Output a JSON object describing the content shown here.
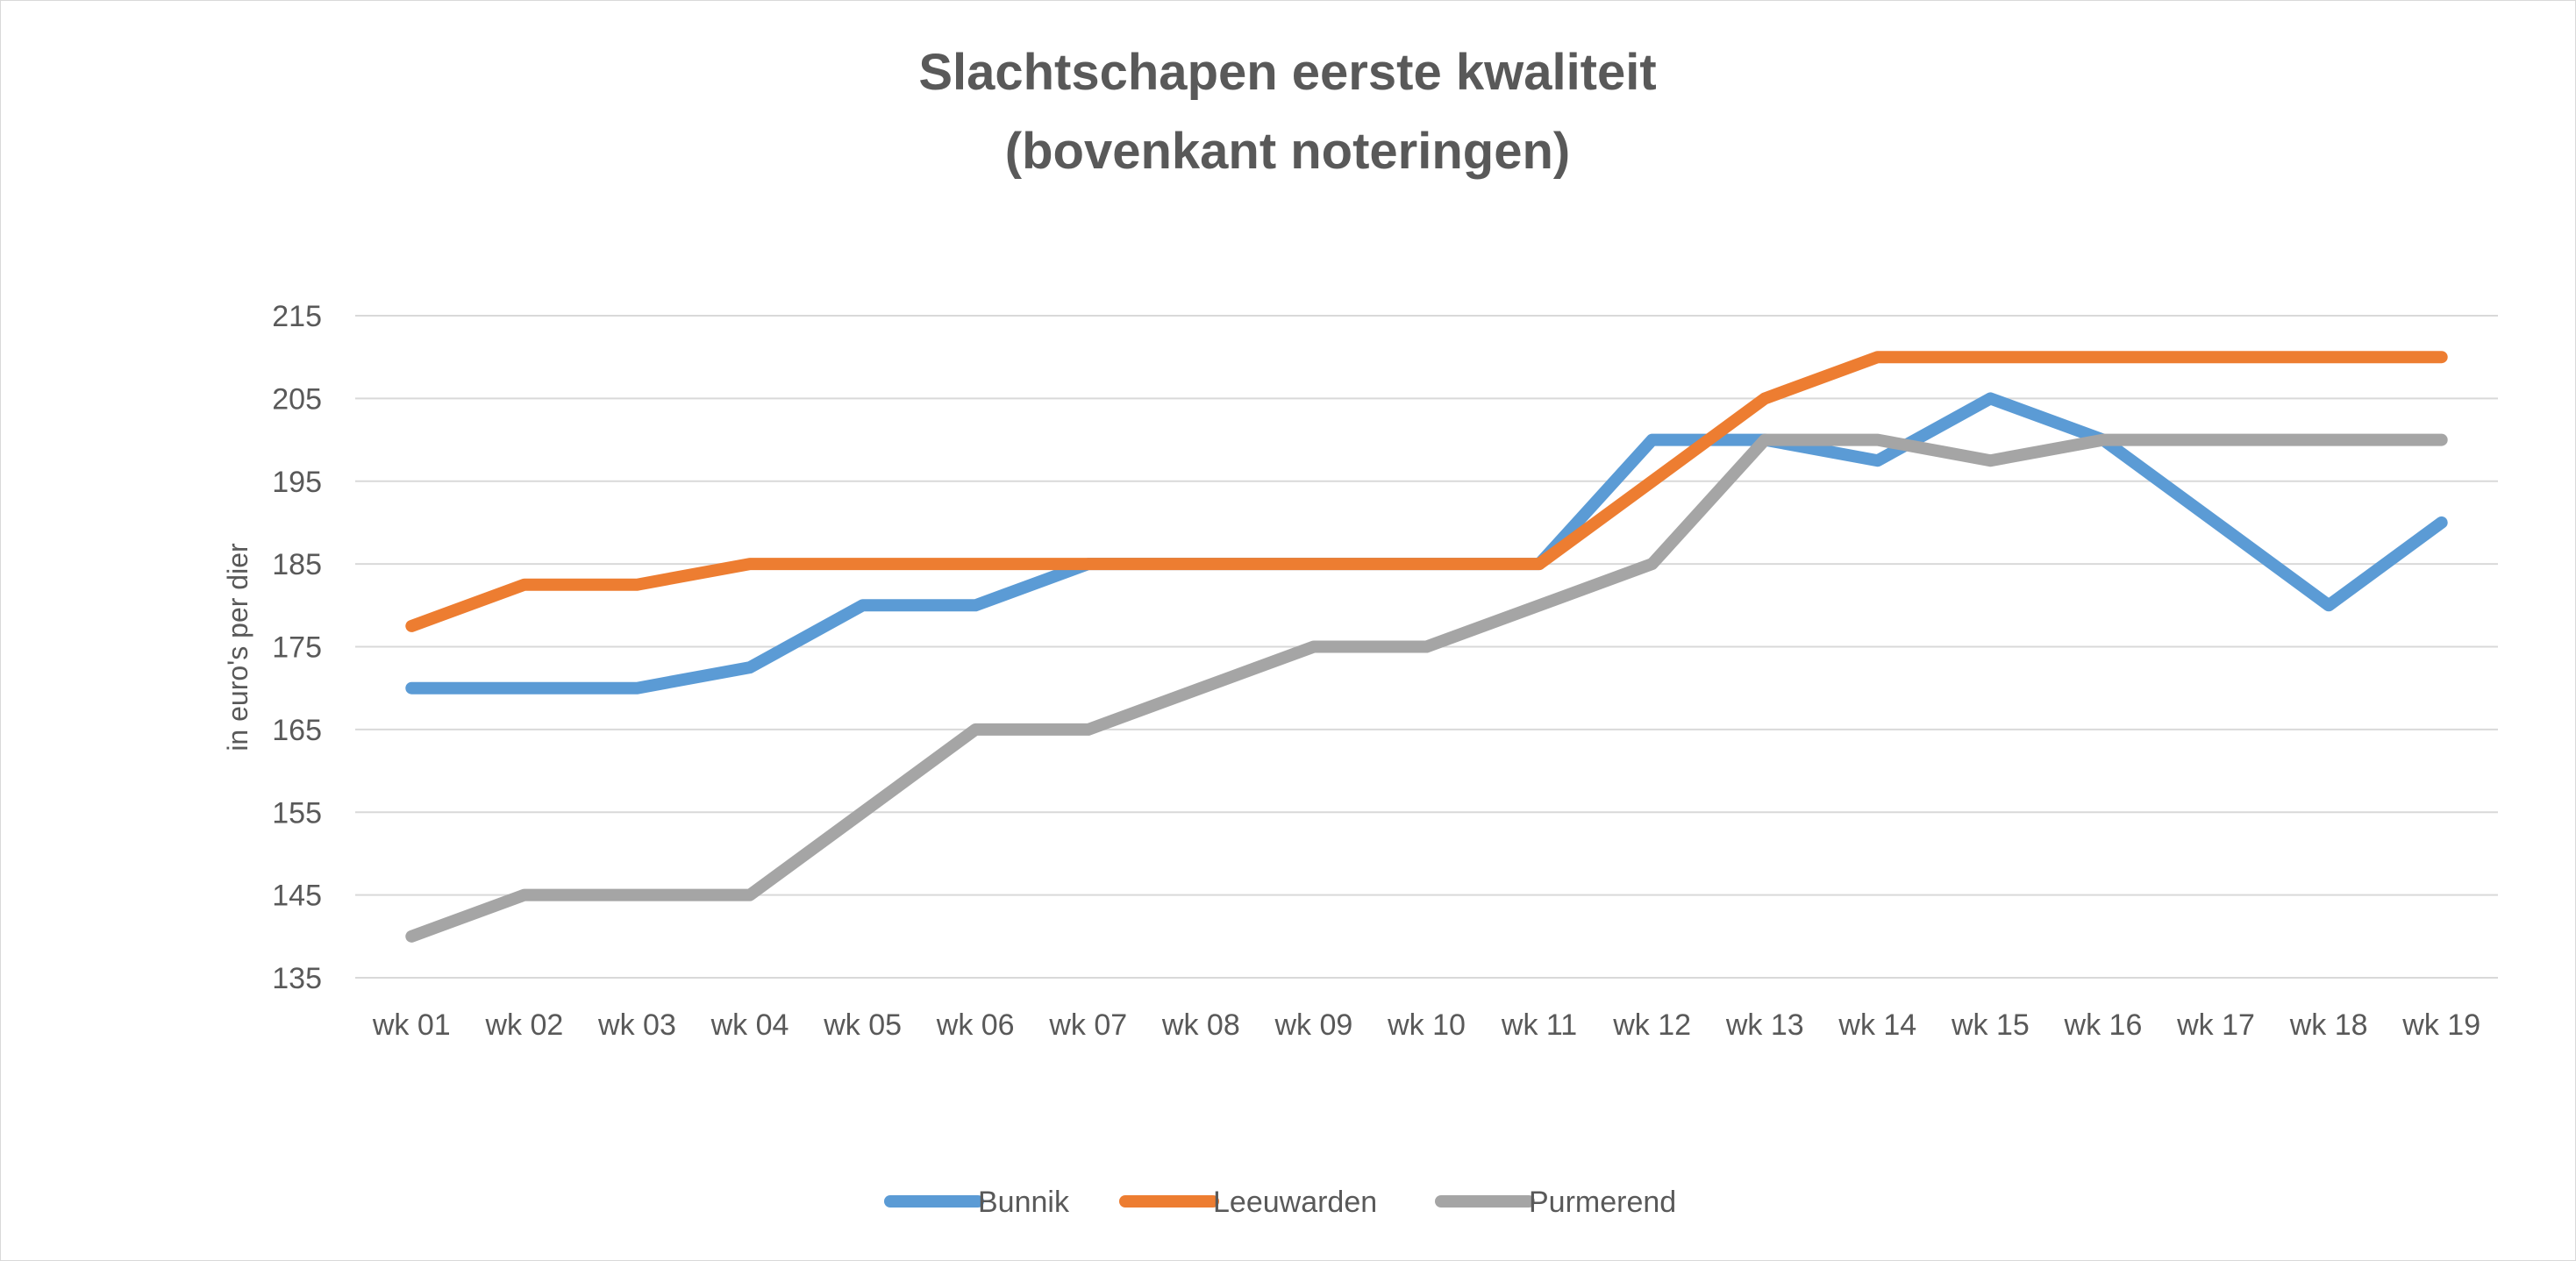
{
  "chart_data": {
    "type": "line",
    "title": [
      "Slachtschapen eerste kwaliteit",
      "(bovenkant noteringen)"
    ],
    "xlabel": "",
    "ylabel": "in euro's per dier",
    "categories": [
      "wk 01",
      "wk 02",
      "wk 03",
      "wk 04",
      "wk 05",
      "wk 06",
      "wk 07",
      "wk 08",
      "wk 09",
      "wk 10",
      "wk 11",
      "wk 12",
      "wk 13",
      "wk 14",
      "wk 15",
      "wk 16",
      "wk 17",
      "wk 18",
      "wk 19"
    ],
    "yticks": [
      "135",
      "145",
      "155",
      "165",
      "175",
      "185",
      "195",
      "205",
      "215"
    ],
    "ylim": [
      135,
      215
    ],
    "grid": true,
    "legend": "bottom",
    "series": [
      {
        "name": "Bunnik",
        "color": "#5b9bd5",
        "values": [
          170,
          170,
          170,
          172.5,
          180,
          180,
          185,
          185,
          185,
          185,
          185,
          200,
          200,
          197.5,
          205,
          200,
          190,
          180,
          190
        ]
      },
      {
        "name": "Leeuwarden",
        "color": "#ed7d31",
        "values": [
          177.5,
          182.5,
          182.5,
          185,
          185,
          185,
          185,
          185,
          185,
          185,
          185,
          195,
          205,
          210,
          210,
          210,
          210,
          210,
          210
        ]
      },
      {
        "name": "Purmerend",
        "color": "#a5a5a5",
        "values": [
          140,
          145,
          145,
          145,
          155,
          165,
          165,
          170,
          175,
          175,
          180,
          185,
          200,
          200,
          197.5,
          200,
          200,
          200,
          200
        ]
      }
    ]
  }
}
